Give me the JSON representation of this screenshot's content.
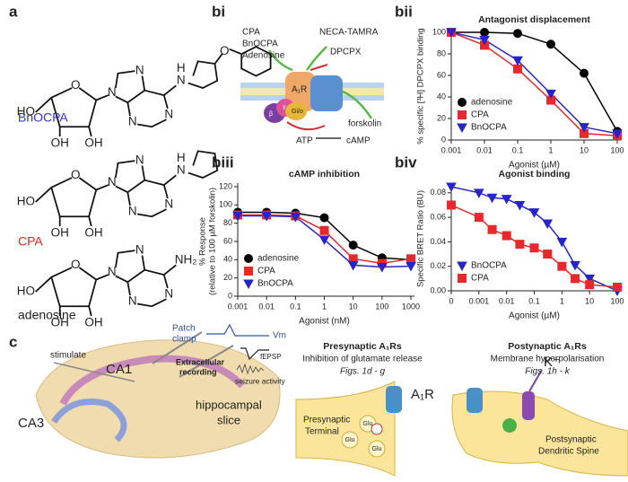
{
  "panel_labels": {
    "a": "a",
    "bi": "bi",
    "bii": "bii",
    "biii": "biii",
    "biv": "biv",
    "c": "c"
  },
  "molecules": [
    {
      "name": "BnOCPA",
      "color": "#3333cc",
      "atoms": [
        "HO",
        "O",
        "OH",
        "OH",
        "N",
        "N",
        "N",
        "N",
        "N",
        "H",
        "O"
      ]
    },
    {
      "name": "CPA",
      "color": "#e02020",
      "atoms": [
        "HO",
        "O",
        "OH",
        "OH",
        "N",
        "N",
        "N",
        "N",
        "N",
        "H"
      ]
    },
    {
      "name": "adenosine",
      "color": "#222222",
      "atoms": [
        "HO",
        "O",
        "OH",
        "OH",
        "N",
        "N",
        "N",
        "N",
        "NH₂"
      ]
    }
  ],
  "bi": {
    "labels": [
      "CPA",
      "BnOCPA",
      "Adenosine",
      "NECA-TAMRA",
      "DPCPX",
      "A₁R",
      "Gi/o",
      "β",
      "γ",
      "forskolin",
      "ATP",
      "cAMP"
    ]
  },
  "c": {
    "slice": [
      "stimulate",
      "Patch",
      "clamp",
      "Vm",
      "fEPSP",
      "Extracellular",
      "recording",
      "seizure activity",
      "CA1",
      "CA3",
      "hippocampal",
      "slice"
    ],
    "pre": {
      "title": "Presynaptic A₁Rs",
      "subtitle": "Inhibition of glutamate release",
      "figs": "Figs. 1d - g",
      "receptor": "A₁R",
      "terminal": [
        "Presynaptic",
        "Terminal"
      ],
      "glu": [
        "Glu",
        "Glu",
        "Glu"
      ]
    },
    "post": {
      "title": "Postynaptic A₁Rs",
      "subtitle": "Membrane hyperpolarisation",
      "figs": "Figs. 1h - k",
      "ion": "K⁺",
      "spine": [
        "Postsynaptic",
        "Dendritic Spine"
      ]
    }
  },
  "chart_data": [
    {
      "type": "line",
      "title": "Antagonist displacement",
      "xlabel": "Agonist (µM)",
      "ylabel": [
        "% specific [³H] DPCPX binding"
      ],
      "xlog": true,
      "xlim": [
        0.001,
        100
      ],
      "xticks": [
        0.001,
        0.01,
        0.1,
        1,
        10,
        100
      ],
      "ylim": [
        0,
        100
      ],
      "yticks": [
        0,
        20,
        40,
        60,
        80,
        100
      ],
      "legend": "lower left",
      "series": [
        {
          "name": "adenosine",
          "color": "#000000",
          "marker": "circle",
          "x": [
            0.001,
            0.01,
            0.1,
            1,
            10,
            100
          ],
          "values": [
            100,
            100,
            99,
            89,
            62,
            8
          ]
        },
        {
          "name": "CPA",
          "color": "#e8282b",
          "marker": "square",
          "x": [
            0.001,
            0.01,
            0.1,
            1,
            10,
            100
          ],
          "values": [
            100,
            88,
            66,
            37,
            6,
            4
          ]
        },
        {
          "name": "BnOCPA",
          "color": "#2626c8",
          "marker": "triangle",
          "x": [
            0.001,
            0.01,
            0.1,
            1,
            10,
            100
          ],
          "values": [
            100,
            93,
            74,
            43,
            12,
            6
          ]
        }
      ]
    },
    {
      "type": "line",
      "title": "cAMP inhibition",
      "xlabel": "Agonist (nM)",
      "ylabel": [
        "% Response",
        "(relative to 100 µM forskolin)"
      ],
      "xlog": true,
      "xlim": [
        0.001,
        1000
      ],
      "xticks": [
        0.001,
        0.01,
        0.1,
        1,
        10,
        100,
        1000
      ],
      "ylim": [
        0,
        120
      ],
      "yticks": [
        0,
        20,
        40,
        60,
        80,
        100,
        120
      ],
      "legend": "lower left",
      "series": [
        {
          "name": "adenosine",
          "color": "#000000",
          "marker": "circle",
          "x": [
            0.001,
            0.01,
            0.1,
            1,
            10,
            100,
            1000
          ],
          "values": [
            92,
            92,
            91,
            86,
            56,
            42,
            40
          ]
        },
        {
          "name": "CPA",
          "color": "#e8282b",
          "marker": "square",
          "x": [
            0.001,
            0.01,
            0.1,
            1,
            10,
            100,
            1000
          ],
          "values": [
            89,
            89,
            88,
            72,
            41,
            36,
            41
          ]
        },
        {
          "name": "BnOCPA",
          "color": "#2626c8",
          "marker": "triangle",
          "x": [
            0.001,
            0.01,
            0.1,
            1,
            10,
            100,
            1000
          ],
          "values": [
            88,
            88,
            87,
            62,
            34,
            32,
            33
          ]
        }
      ]
    },
    {
      "type": "line",
      "title": "Agonist binding",
      "xlabel": "Agonist (µM)",
      "ylabel": [
        "Specific BRET Ratio (BU)"
      ],
      "xlog": true,
      "xlim": [
        0.0001,
        100
      ],
      "xticks": [
        {
          "value": 0.0001,
          "label": "0"
        },
        0.001,
        0.01,
        0.1,
        1,
        10,
        100
      ],
      "ylim": [
        0,
        0.085
      ],
      "yticks": [
        {
          "value": 0,
          "label": "0.00"
        },
        {
          "value": 0.02,
          "label": "0.02"
        },
        {
          "value": 0.04,
          "label": "0.04"
        },
        {
          "value": 0.06,
          "label": "0.06"
        },
        {
          "value": 0.08,
          "label": "0.08"
        }
      ],
      "legend": "lower left",
      "series": [
        {
          "name": "BnOCPA",
          "color": "#2626c8",
          "marker": "triangle",
          "x": [
            0.0001,
            0.001,
            0.003,
            0.01,
            0.03,
            0.1,
            0.3,
            1,
            3,
            10,
            100
          ],
          "values": [
            0.085,
            0.08,
            0.076,
            0.075,
            0.07,
            0.064,
            0.055,
            0.04,
            0.021,
            0.01,
            0.0
          ]
        },
        {
          "name": "CPA",
          "color": "#e8282b",
          "marker": "square",
          "x": [
            0.0001,
            0.001,
            0.003,
            0.01,
            0.03,
            0.1,
            0.3,
            1,
            3,
            10,
            100
          ],
          "values": [
            0.07,
            0.06,
            0.05,
            0.045,
            0.038,
            0.035,
            0.03,
            0.02,
            0.01,
            0.005,
            0.003
          ]
        }
      ]
    }
  ]
}
